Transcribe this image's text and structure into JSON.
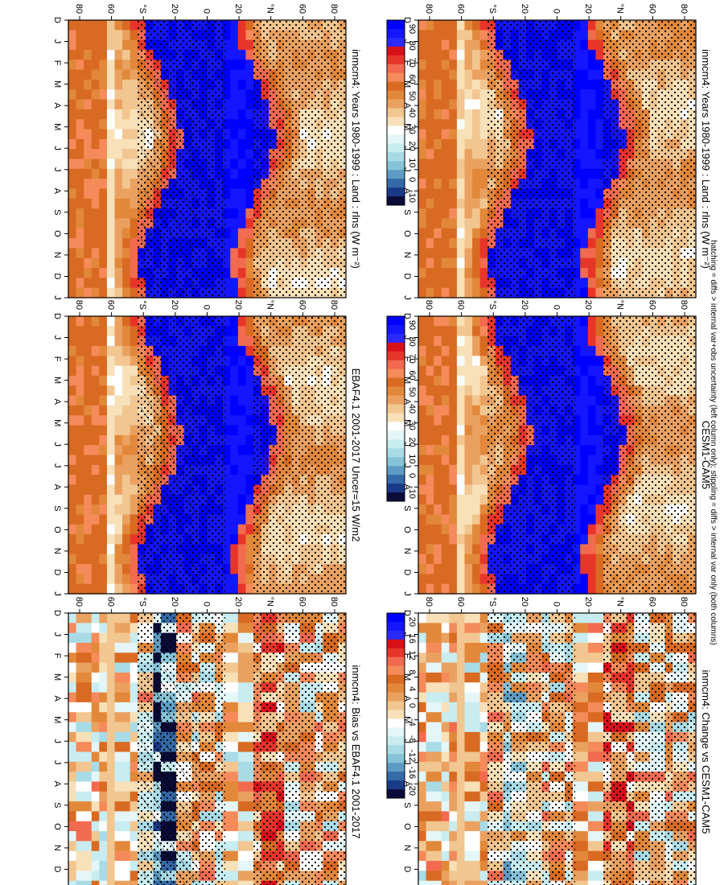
{
  "chart_data": [
    {
      "type": "heatmap",
      "title": "inmcm4: Years 1980-1999 : Land : rlns (W m⁻²)",
      "colorbar": "abs"
    },
    {
      "type": "heatmap",
      "title": "inmcm4: Years 1980-1999 : Land : rlns (W m⁻²)",
      "colorbar": "abs"
    },
    {
      "type": "heatmap",
      "title": "EBAF4.1 2001-2017 Uncer=15 W/m2",
      "colorbar": "abs"
    },
    {
      "type": "heatmap",
      "title": "CESM1-CAM5",
      "colorbar": "abs"
    },
    {
      "type": "heatmap",
      "title": "inmcm4: Bias vs EBAF4.1 2001-2017",
      "colorbar": "diff"
    },
    {
      "type": "heatmap",
      "title": "inmcm4: Change vs CESM1-CAM5",
      "colorbar": "diff"
    }
  ],
  "axes": {
    "months": [
      "D",
      "J",
      "F",
      "M",
      "A",
      "M",
      "J",
      "J",
      "A",
      "S",
      "O",
      "N",
      "D",
      "J"
    ],
    "lat_ticks": [
      "80",
      "60",
      "°N",
      "20",
      "0",
      "20",
      "°S",
      "60",
      "80"
    ]
  },
  "colorbars": {
    "abs": {
      "labels": [
        "90",
        "80",
        "70",
        "60",
        "50",
        "40",
        "30",
        "20",
        "10",
        "0",
        "-10"
      ]
    },
    "diff": {
      "labels": [
        "20",
        "16",
        "12",
        "8",
        "4",
        "0",
        "-4",
        "-8",
        "-12",
        "-16",
        "-20"
      ]
    }
  },
  "footnote": "hatching = diffs > internal var+obs uncertainty (left column only); stippling = diffs > internal var only (both columns)",
  "colors": {
    "abs_scale": [
      "#0000ff",
      "#1515ff",
      "#2a2aff",
      "#d8101a",
      "#e8352a",
      "#f26a4f",
      "#f58a5a",
      "#d96a22",
      "#e2883a",
      "#eaa160",
      "#f2c690",
      "#f8e0b8",
      "#ffffff",
      "#e4f6f8",
      "#c8ecf0",
      "#a8dbe6",
      "#86c3d8",
      "#5c9cc4",
      "#346aa8",
      "#1a3a88",
      "#0b0b3a"
    ],
    "diff_scale": [
      "#0000ff",
      "#1515ff",
      "#2a2aff",
      "#d8101a",
      "#e8352a",
      "#f26a4f",
      "#f58a5a",
      "#d96a22",
      "#e2883a",
      "#eaa160",
      "#f2c690",
      "#f8e0b8",
      "#ffffff",
      "#e4f6f8",
      "#c8ecf0",
      "#a8dbe6",
      "#86c3d8",
      "#5c9cc4",
      "#346aa8",
      "#1a3a88",
      "#0b0b3a"
    ]
  }
}
